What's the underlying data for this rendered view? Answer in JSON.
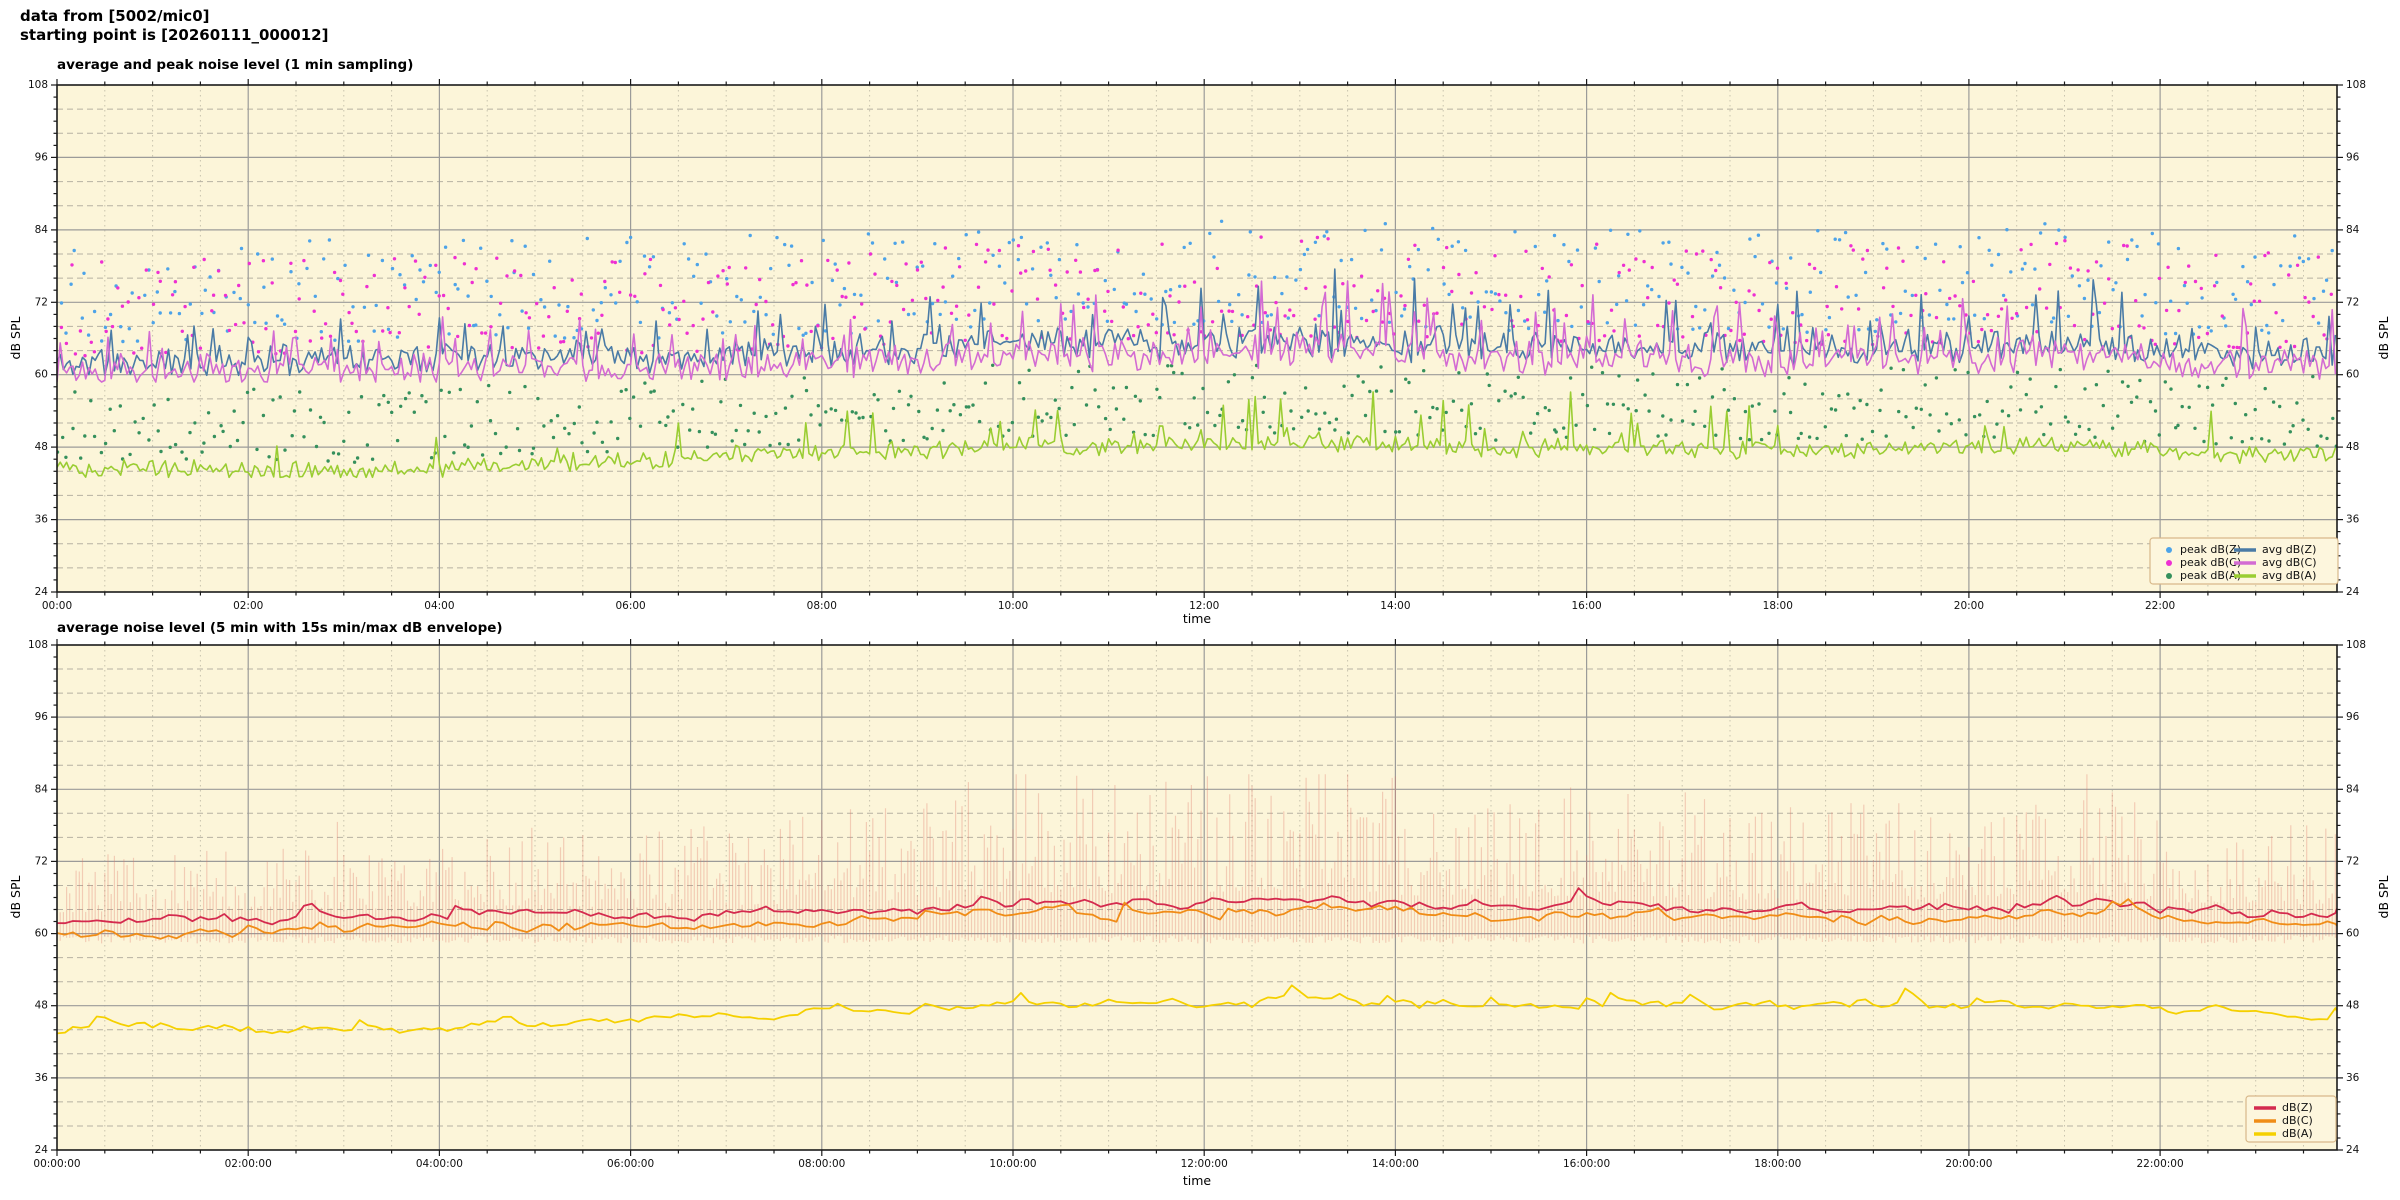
{
  "header": {
    "line1": "data from [5002/mic0]",
    "line2": "starting point is [20260111_000012]"
  },
  "colors": {
    "figure_bg": "#ffffff",
    "plot_bg": "#fcf5d9",
    "grid_major": "#9b9b99",
    "grid_minor_dash": "#b6b1a2",
    "grid_minor_dot": "#c9c4ae",
    "spine": "#1a1a1a",
    "legend_bg": "#fdf6dd",
    "legend_border": "#d8b88a",
    "avg_dbz": "#4a7ba6",
    "avg_dbc": "#d36bd3",
    "avg_dba": "#9acd32",
    "peak_dbz": "#4da3e8",
    "peak_dbc": "#ee2fd2",
    "peak_dba": "#35905c",
    "env_dbz": "#d42a4e",
    "env_dbc": "#f08c16",
    "env_dba": "#f5d000",
    "envelope": "#e07868"
  },
  "axis": {
    "ylabel": "dB SPL",
    "xlabel": "time",
    "ylim": [
      24,
      108
    ],
    "ytick_major": [
      108,
      96,
      84,
      72,
      60,
      48,
      36,
      24
    ],
    "ytick_minor_db": 2,
    "ygrid_minor_db": 4,
    "x_hours_end": 23.85,
    "x_major_step_h": 2,
    "x_minor_step_h": 0.5
  },
  "chart_data": [
    {
      "type": "scatter+line",
      "title": "average and peak noise level (1 min sampling)",
      "xlabel": "time",
      "ylabel": "dB SPL",
      "sampling": "1 min",
      "xtick_labels": [
        "00:00",
        "02:00",
        "04:00",
        "06:00",
        "08:00",
        "10:00",
        "12:00",
        "14:00",
        "16:00",
        "18:00",
        "20:00",
        "22:00"
      ],
      "series": [
        {
          "name": "avg dB(Z)",
          "color_key": "avg_dbz",
          "seed": 11,
          "trend_by_hour": [
            62.0,
            62.3,
            62.2,
            62.5,
            63.0,
            63.2,
            62.8,
            63.2,
            63.6,
            64.2,
            65.3,
            65.0,
            65.4,
            65.8,
            65.0,
            64.2,
            64.8,
            64.4,
            64.0,
            64.0,
            64.4,
            65.4,
            63.8,
            63.4,
            63.2
          ],
          "wiggle": 3.0,
          "spike_p": 0.12,
          "spike_ref": 62.0,
          "spike_gain": 2.0,
          "clamp": [
            59.9,
            77.5
          ]
        },
        {
          "name": "avg dB(C)",
          "color_key": "avg_dbc",
          "seed": 12,
          "trend_by_hour": [
            60.4,
            60.6,
            60.5,
            60.8,
            61.2,
            61.4,
            61.0,
            61.4,
            61.8,
            62.4,
            63.4,
            63.1,
            63.5,
            63.9,
            63.2,
            62.5,
            63.0,
            62.6,
            62.3,
            62.3,
            62.6,
            63.5,
            62.0,
            61.8,
            61.6
          ],
          "wiggle": 3.0,
          "spike_p": 0.12,
          "spike_ref": 60.3,
          "spike_gain": 2.0,
          "clamp": [
            58.8,
            75.5
          ]
        },
        {
          "name": "avg dB(A)",
          "color_key": "avg_dba",
          "seed": 13,
          "trend_by_hour": [
            44.8,
            44.3,
            44.2,
            43.9,
            44.6,
            45.3,
            45.8,
            46.6,
            47.0,
            47.4,
            48.4,
            48.0,
            48.4,
            48.9,
            48.4,
            47.6,
            48.0,
            48.0,
            47.6,
            47.6,
            48.0,
            48.5,
            47.2,
            46.8,
            46.4
          ],
          "wiggle": 1.8,
          "spike_p": 0.055,
          "spike_ref": 44.0,
          "spike_gain": 0.8,
          "clamp": [
            43.0,
            58.5
          ]
        }
      ],
      "scatter": [
        {
          "name": "peak dB(Z)",
          "color_key": "peak_dbz",
          "seed": 14,
          "follows": 0,
          "offset": 3.0,
          "range": 17.0,
          "clamp_max": 87.0
        },
        {
          "name": "peak dB(C)",
          "color_key": "peak_dbc",
          "seed": 15,
          "follows": 1,
          "offset": 2.6,
          "range": 16.5,
          "clamp_max": 85.0
        },
        {
          "name": "peak dB(A)",
          "color_key": "peak_dba",
          "seed": 16,
          "follows": 2,
          "offset": 1.5,
          "range": 12.0,
          "clamp_max": 62.5
        }
      ],
      "legend": {
        "left_column": [
          {
            "label": "peak dB(Z)",
            "marker": "dot",
            "color_key": "peak_dbz"
          },
          {
            "label": "peak dB(C)",
            "marker": "dot",
            "color_key": "peak_dbc"
          },
          {
            "label": "peak dB(A)",
            "marker": "dot",
            "color_key": "peak_dba"
          }
        ],
        "right_column": [
          {
            "label": "avg dB(Z)",
            "marker": "line",
            "color_key": "avg_dbz"
          },
          {
            "label": "avg dB(C)",
            "marker": "line",
            "color_key": "avg_dbc"
          },
          {
            "label": "avg dB(A)",
            "marker": "line",
            "color_key": "avg_dba"
          }
        ]
      }
    },
    {
      "type": "line+envelope",
      "title": "average noise level (5 min with 15s min/max dB envelope)",
      "xlabel": "time",
      "ylabel": "dB SPL",
      "sampling": "5 min",
      "xtick_labels": [
        "00:00:00",
        "02:00:00",
        "04:00:00",
        "06:00:00",
        "08:00:00",
        "10:00:00",
        "12:00:00",
        "14:00:00",
        "16:00:00",
        "18:00:00",
        "20:00:00",
        "22:00:00"
      ],
      "series": [
        {
          "name": "dB(Z)",
          "color_key": "env_dbz",
          "seed": 21,
          "trend_by_hour": [
            62.0,
            62.3,
            62.2,
            62.5,
            63.0,
            63.2,
            62.8,
            63.2,
            63.6,
            64.2,
            65.3,
            65.0,
            65.4,
            65.8,
            65.0,
            64.2,
            64.8,
            64.4,
            64.0,
            64.0,
            64.4,
            65.4,
            63.8,
            63.4,
            63.2
          ],
          "wiggle": 2.2,
          "bump_p": 0.06,
          "bump_amp": 3.5,
          "clamp": [
            59.9,
            71.5
          ]
        },
        {
          "name": "dB(C)",
          "color_key": "env_dbc",
          "seed": 22,
          "trend_by_hour": [
            60.4,
            60.6,
            60.5,
            60.8,
            61.2,
            61.4,
            61.0,
            61.4,
            61.8,
            62.4,
            63.4,
            63.1,
            63.5,
            63.9,
            63.2,
            62.5,
            63.0,
            62.6,
            62.3,
            62.3,
            62.6,
            63.5,
            62.0,
            61.8,
            61.6
          ],
          "wiggle": 2.2,
          "bump_p": 0.06,
          "bump_amp": 3.5,
          "clamp": [
            58.7,
            69.5
          ]
        },
        {
          "name": "dB(A)",
          "color_key": "env_dba",
          "seed": 23,
          "trend_by_hour": [
            44.8,
            44.3,
            44.2,
            43.9,
            44.6,
            45.3,
            45.8,
            46.6,
            47.0,
            47.4,
            48.4,
            48.0,
            48.4,
            48.9,
            48.4,
            47.6,
            48.0,
            48.0,
            47.6,
            47.6,
            48.0,
            48.5,
            47.2,
            46.8,
            46.4
          ],
          "wiggle": 2.0,
          "bump_p": 0.07,
          "bump_amp": 4.5,
          "clamp": [
            43.4,
            56.5
          ]
        }
      ],
      "envelope": {
        "seed": 31,
        "step_min": 2,
        "min_base": 58.35,
        "min_var": 1.3,
        "max_rise": 1.5,
        "max_range": 9.5,
        "max_day_gain": 3.4,
        "tall_p": 0.07,
        "clamp_max": 86.5,
        "opacity": 0.32
      },
      "legend": {
        "right_column": [
          {
            "label": "dB(Z)",
            "marker": "line",
            "color_key": "env_dbz"
          },
          {
            "label": "dB(C)",
            "marker": "line",
            "color_key": "env_dbc"
          },
          {
            "label": "dB(A)",
            "marker": "line",
            "color_key": "env_dba"
          }
        ]
      }
    }
  ]
}
